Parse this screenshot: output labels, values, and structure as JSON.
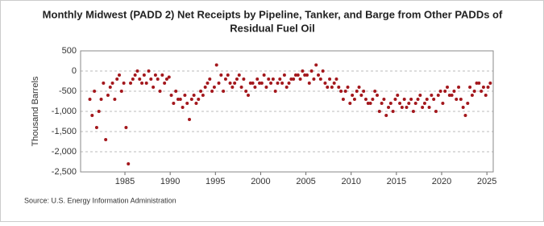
{
  "chart_data": {
    "type": "scatter",
    "title": "Monthly Midwest (PADD 2) Net Receipts by Pipeline, Tanker, and Barge from Other PADDs of",
    "subtitle": "Residual Fuel Oil",
    "ylabel": "Thousand Barrels",
    "source": "Source: U.S. Energy Information Administration",
    "color": "#a3171c",
    "grid": true,
    "xlim": [
      1980.1,
      2025.7
    ],
    "ylim": [
      -2500,
      500
    ],
    "xticks": [
      1985,
      1990,
      1995,
      2000,
      2005,
      2010,
      2015,
      2020,
      2025
    ],
    "yticks": [
      500,
      0,
      -500,
      {
        "value": -1000,
        "label": "-1,000"
      },
      {
        "value": -1500,
        "label": "-1,500"
      },
      {
        "value": -2000,
        "label": "-2,000"
      },
      {
        "value": -2500,
        "label": "-2,500"
      }
    ],
    "series": [
      {
        "name": "Net Receipts",
        "color": "#a3171c",
        "x": [
          1981.125,
          1981.375,
          1981.625,
          1981.875,
          1982.125,
          1982.375,
          1982.625,
          1982.875,
          1983.125,
          1983.375,
          1983.625,
          1983.875,
          1984.125,
          1984.375,
          1984.625,
          1984.875,
          1985.125,
          1985.375,
          1985.625,
          1985.875,
          1986.125,
          1986.375,
          1986.625,
          1986.875,
          1987.125,
          1987.375,
          1987.625,
          1987.875,
          1988.125,
          1988.375,
          1988.625,
          1988.875,
          1989.125,
          1989.375,
          1989.625,
          1989.875,
          1990.125,
          1990.375,
          1990.625,
          1990.875,
          1991.125,
          1991.375,
          1991.625,
          1991.875,
          1992.125,
          1992.375,
          1992.625,
          1992.875,
          1993.125,
          1993.375,
          1993.625,
          1993.875,
          1994.125,
          1994.375,
          1994.625,
          1994.875,
          1995.125,
          1995.375,
          1995.625,
          1995.875,
          1996.125,
          1996.375,
          1996.625,
          1996.875,
          1997.125,
          1997.375,
          1997.625,
          1997.875,
          1998.125,
          1998.375,
          1998.625,
          1998.875,
          1999.125,
          1999.375,
          1999.625,
          1999.875,
          2000.125,
          2000.375,
          2000.625,
          2000.875,
          2001.125,
          2001.375,
          2001.625,
          2001.875,
          2002.125,
          2002.375,
          2002.625,
          2002.875,
          2003.125,
          2003.375,
          2003.625,
          2003.875,
          2004.125,
          2004.375,
          2004.625,
          2004.875,
          2005.125,
          2005.375,
          2005.625,
          2005.875,
          2006.125,
          2006.375,
          2006.625,
          2006.875,
          2007.125,
          2007.375,
          2007.625,
          2007.875,
          2008.125,
          2008.375,
          2008.625,
          2008.875,
          2009.125,
          2009.375,
          2009.625,
          2009.875,
          2010.125,
          2010.375,
          2010.625,
          2010.875,
          2011.125,
          2011.375,
          2011.625,
          2011.875,
          2012.125,
          2012.375,
          2012.625,
          2012.875,
          2013.125,
          2013.375,
          2013.625,
          2013.875,
          2014.125,
          2014.375,
          2014.625,
          2014.875,
          2015.125,
          2015.375,
          2015.625,
          2015.875,
          2016.125,
          2016.375,
          2016.625,
          2016.875,
          2017.125,
          2017.375,
          2017.625,
          2017.875,
          2018.125,
          2018.375,
          2018.625,
          2018.875,
          2019.125,
          2019.375,
          2019.625,
          2019.875,
          2020.125,
          2020.375,
          2020.625,
          2020.875,
          2021.125,
          2021.375,
          2021.625,
          2021.875,
          2022.125,
          2022.375,
          2022.625,
          2022.875,
          2023.125,
          2023.375,
          2023.625,
          2023.875,
          2024.125,
          2024.375,
          2024.625,
          2024.875,
          2025.125,
          2025.375
        ],
        "values": [
          -700,
          -1100,
          -500,
          -1400,
          -1000,
          -700,
          -300,
          -1700,
          -600,
          -400,
          -300,
          -700,
          -200,
          -100,
          -500,
          -300,
          -1400,
          -2300,
          -300,
          -200,
          -100,
          0,
          -200,
          -300,
          -100,
          -300,
          0,
          -200,
          -400,
          -100,
          -200,
          -500,
          -100,
          -300,
          -200,
          -150,
          -600,
          -800,
          -500,
          -700,
          -700,
          -900,
          -600,
          -800,
          -1200,
          -700,
          -600,
          -800,
          -700,
          -500,
          -600,
          -400,
          -300,
          -200,
          -500,
          -400,
          150,
          -300,
          -100,
          -500,
          -200,
          -100,
          -300,
          -400,
          -300,
          -200,
          -100,
          -400,
          -200,
          -500,
          -600,
          -300,
          -300,
          -400,
          -200,
          -300,
          -300,
          -100,
          -400,
          -200,
          -300,
          -200,
          -500,
          -300,
          -200,
          -300,
          -100,
          -400,
          -300,
          -200,
          -200,
          -100,
          -100,
          -200,
          0,
          -100,
          -100,
          -300,
          0,
          -200,
          150,
          -100,
          -200,
          0,
          -300,
          -400,
          -200,
          -400,
          -300,
          -200,
          -400,
          -500,
          -700,
          -500,
          -400,
          -800,
          -600,
          -700,
          -500,
          -400,
          -600,
          -500,
          -700,
          -800,
          -800,
          -700,
          -500,
          -600,
          -1000,
          -800,
          -700,
          -1100,
          -900,
          -800,
          -1000,
          -700,
          -600,
          -800,
          -900,
          -700,
          -900,
          -800,
          -700,
          -1000,
          -800,
          -700,
          -600,
          -900,
          -800,
          -700,
          -900,
          -600,
          -700,
          -1000,
          -600,
          -500,
          -800,
          -500,
          -400,
          -600,
          -600,
          -500,
          -700,
          -400,
          -700,
          -900,
          -1100,
          -800,
          -400,
          -600,
          -500,
          -300,
          -300,
          -500,
          -400,
          -600,
          -400,
          -300
        ]
      }
    ]
  }
}
